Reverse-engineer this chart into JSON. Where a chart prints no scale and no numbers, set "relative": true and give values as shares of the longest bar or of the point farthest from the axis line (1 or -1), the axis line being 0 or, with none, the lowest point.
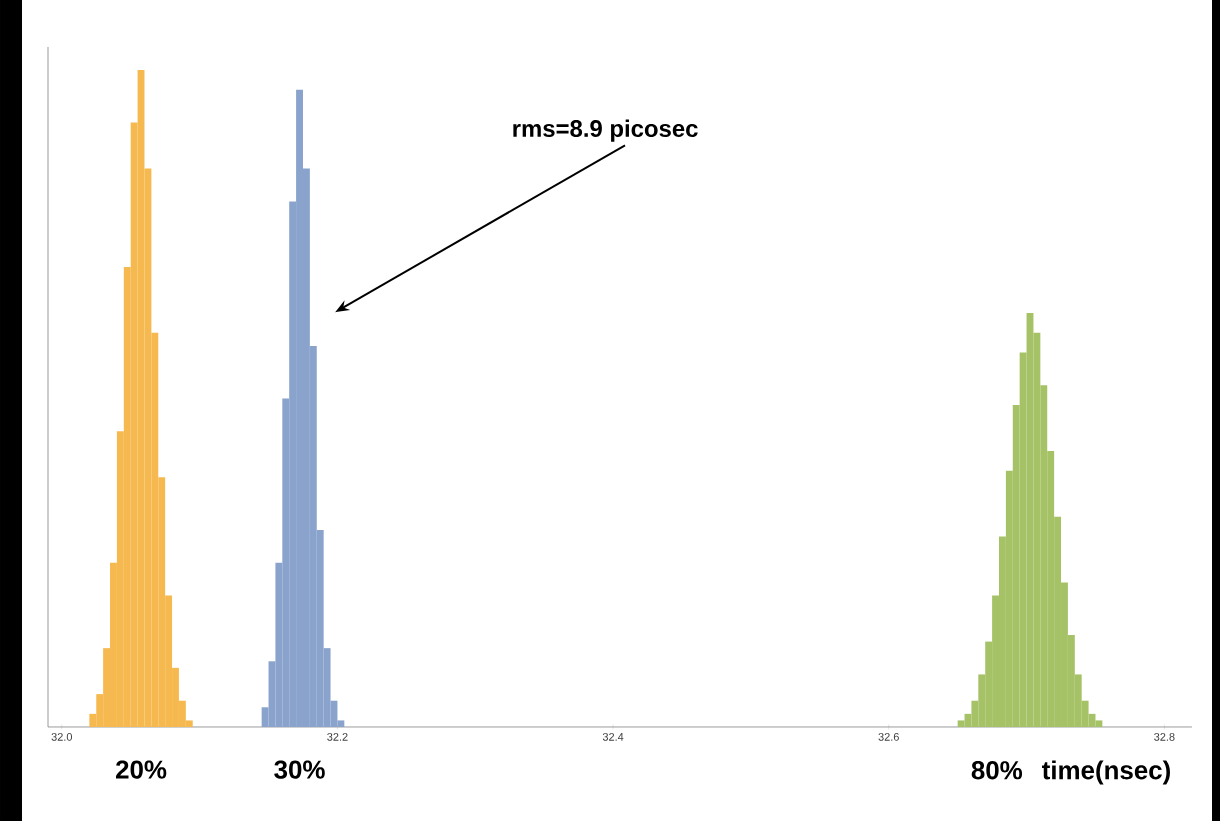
{
  "chart_data": {
    "type": "bar",
    "relative": true,
    "xlabel": "time(nsec)",
    "xlim": [
      31.99,
      32.82
    ],
    "xticks": [
      {
        "value": 32.0,
        "label": "32.0"
      },
      {
        "value": 32.2,
        "label": "32.2"
      },
      {
        "value": 32.4,
        "label": "32.4"
      },
      {
        "value": 32.6,
        "label": "32.6"
      },
      {
        "value": 32.8,
        "label": "32.8"
      }
    ],
    "series": [
      {
        "name": "20%",
        "color": "#f6b94f",
        "x": [
          32.0225,
          32.0275,
          32.0325,
          32.0375,
          32.0425,
          32.0475,
          32.0525,
          32.0575,
          32.0625,
          32.0675,
          32.0725,
          32.0775,
          32.0825,
          32.0875,
          32.0925
        ],
        "values": [
          0.02,
          0.05,
          0.12,
          0.25,
          0.45,
          0.7,
          0.92,
          1.0,
          0.85,
          0.6,
          0.38,
          0.2,
          0.09,
          0.04,
          0.01
        ]
      },
      {
        "name": "30%",
        "color": "#8aa3cc",
        "x": [
          32.1475,
          32.1525,
          32.1575,
          32.1625,
          32.1675,
          32.1725,
          32.1775,
          32.1825,
          32.1875,
          32.1925,
          32.1975,
          32.2025
        ],
        "values": [
          0.03,
          0.1,
          0.25,
          0.5,
          0.8,
          0.97,
          0.85,
          0.58,
          0.3,
          0.12,
          0.04,
          0.01
        ]
      },
      {
        "name": "80%",
        "color": "#a6c266",
        "x": [
          32.6525,
          32.6575,
          32.6625,
          32.6675,
          32.6725,
          32.6775,
          32.6825,
          32.6875,
          32.6925,
          32.6975,
          32.7025,
          32.7075,
          32.7125,
          32.7175,
          32.7225,
          32.7275,
          32.7325,
          32.7375,
          32.7425,
          32.7475,
          32.7525
        ],
        "values": [
          0.01,
          0.02,
          0.04,
          0.08,
          0.13,
          0.2,
          0.29,
          0.39,
          0.49,
          0.57,
          0.63,
          0.6,
          0.52,
          0.42,
          0.32,
          0.22,
          0.14,
          0.08,
          0.04,
          0.02,
          0.01
        ]
      }
    ],
    "annotations": [
      "rms=8.9 picosec"
    ]
  }
}
